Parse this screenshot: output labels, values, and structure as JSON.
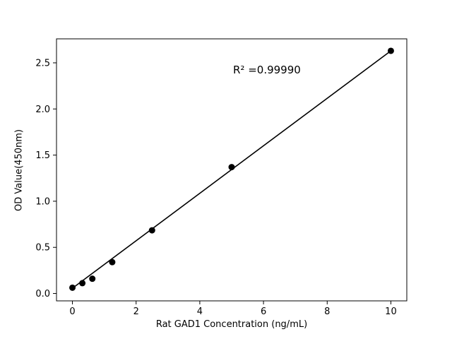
{
  "chart_data": {
    "type": "scatter",
    "title": "",
    "xlabel": "Rat GAD1 Concentration (ng/mL)",
    "ylabel": "OD Value(450nm)",
    "annotation": "R² =0.99990",
    "x": [
      0,
      0.3125,
      0.625,
      1.25,
      2.5,
      5,
      10
    ],
    "y": [
      0.063,
      0.112,
      0.16,
      0.34,
      0.685,
      1.37,
      2.63
    ],
    "fit_line": {
      "slope": 0.2573,
      "intercept": 0.057,
      "x_start": 0,
      "x_end": 10
    },
    "xticks": [
      0,
      2,
      4,
      6,
      8,
      10
    ],
    "xtick_labels": [
      "0",
      "2",
      "4",
      "6",
      "8",
      "10"
    ],
    "yticks": [
      0.0,
      0.5,
      1.0,
      1.5,
      2.0,
      2.5
    ],
    "ytick_labels": [
      "0.0",
      "0.5",
      "1.0",
      "1.5",
      "2.0",
      "2.5"
    ],
    "xlim": [
      -0.5,
      10.5
    ],
    "ylim": [
      -0.08,
      2.76
    ],
    "grid": false,
    "legend": "none",
    "marker_color": "#000000",
    "line_color": "#000000",
    "axes_color": "#000000",
    "background": "#ffffff"
  }
}
